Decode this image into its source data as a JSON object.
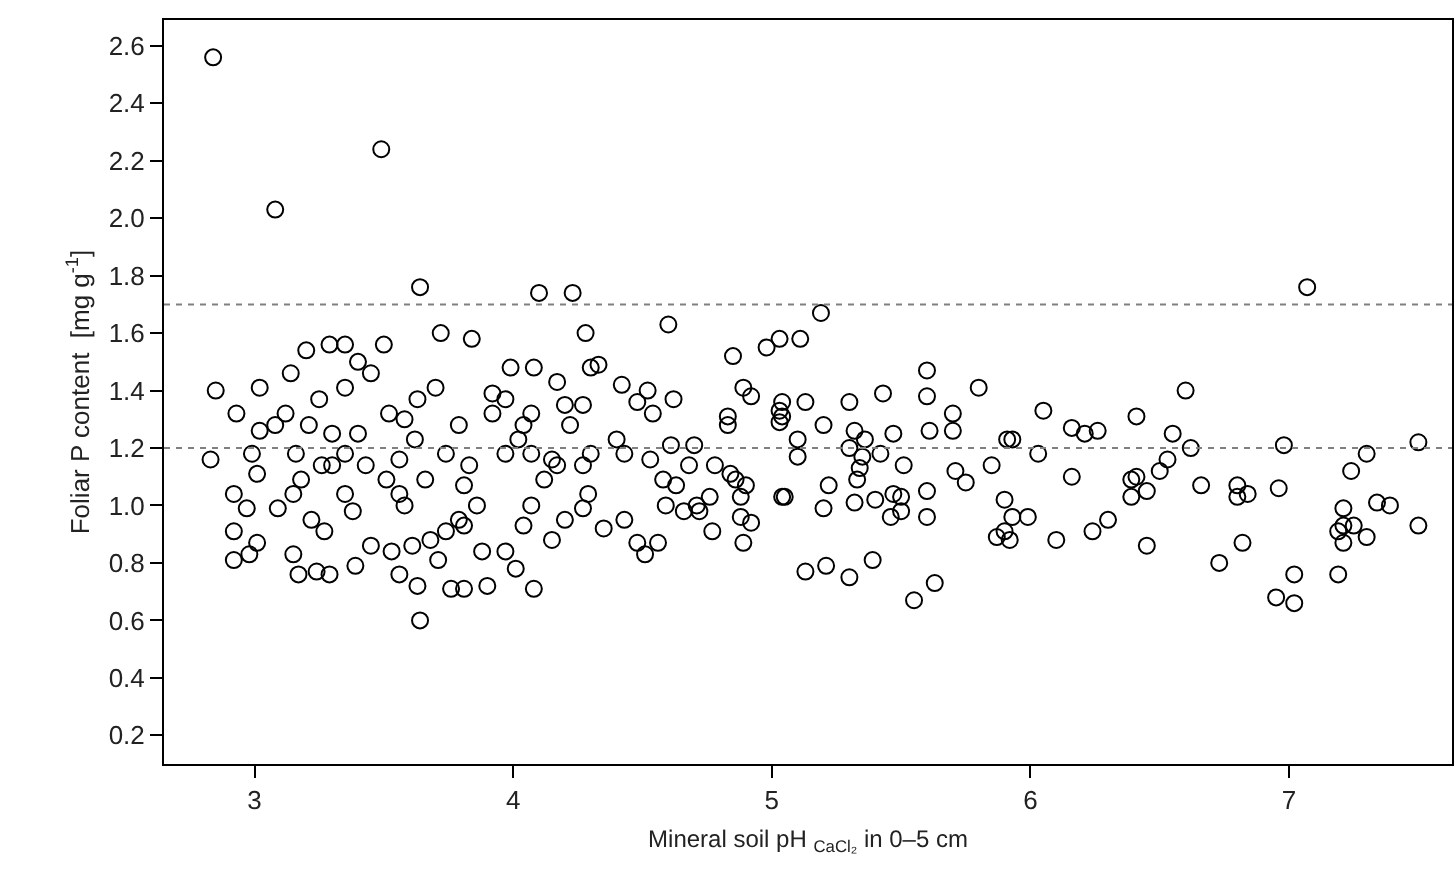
{
  "chart_data": {
    "type": "scatter",
    "xlabel": "Mineral soil pH $_{CaCl₂}$ in 0–5 cm",
    "ylabel": "Foliar P content  [mg g$^{-1}$]",
    "xlim": [
      2.65,
      7.63
    ],
    "ylim": [
      0.1,
      2.69
    ],
    "xticks": [
      3,
      4,
      5,
      6,
      7
    ],
    "yticks": [
      0.2,
      0.4,
      0.6,
      0.8,
      {
        "value": 1,
        "label": "1.0"
      },
      1.2,
      1.4,
      1.6,
      1.8,
      {
        "value": 2,
        "label": "2.0"
      },
      2.2,
      2.4,
      2.6
    ],
    "marker": "circle",
    "ref_lines": [
      {
        "axis": "y",
        "value": 1.2,
        "color": "#808080",
        "line_style": "dotted"
      },
      {
        "axis": "y",
        "value": 1.7,
        "color": "#808080",
        "line_style": "dotted"
      }
    ],
    "series": [
      {
        "color": "#000000",
        "x": [
          2.84,
          3.49,
          3.08,
          2.85,
          2.83,
          3.64,
          4.1,
          4.23,
          4.6,
          4.28,
          3.72,
          3.84,
          3.29,
          3.35,
          3.5,
          3.2,
          3.14,
          3.02,
          2.93,
          2.92,
          2.92,
          2.92,
          2.98,
          3.01,
          2.97,
          3.01,
          2.99,
          3.02,
          3.08,
          3.09,
          3.15,
          3.17,
          3.24,
          3.29,
          3.39,
          3.56,
          3.63,
          3.64,
          3.76,
          3.81,
          3.9,
          4.01,
          4.08,
          3.71,
          3.16,
          3.21,
          3.25,
          3.3,
          3.35,
          3.4,
          3.45,
          3.52,
          3.56,
          3.58,
          3.62,
          3.66,
          3.7,
          3.74,
          3.79,
          3.83,
          3.86,
          3.92,
          3.97,
          4.02,
          3.97,
          3.92,
          3.35,
          3.4,
          3.22,
          3.27,
          3.38,
          3.45,
          3.53,
          3.61,
          3.68,
          3.81,
          3.88,
          3.97,
          3.79,
          3.26,
          3.18,
          3.12,
          3.15,
          3.43,
          3.51,
          3.58,
          3.63,
          3.74,
          3.81,
          3.56,
          3.3,
          3.35,
          4.04,
          4.07,
          4.08,
          3.99,
          4.17,
          4.2,
          4.3,
          4.33,
          4.42,
          4.52,
          4.54,
          4.48,
          4.62,
          4.85,
          4.89,
          4.92,
          4.83,
          4.83,
          4.07,
          4.15,
          4.17,
          4.27,
          4.3,
          4.4,
          4.43,
          4.53,
          4.61,
          4.7,
          4.68,
          4.63,
          4.78,
          4.84,
          4.86,
          4.76,
          4.72,
          4.66,
          4.88,
          4.9,
          4.88,
          4.92,
          4.89,
          4.77,
          4.56,
          4.51,
          4.48,
          4.43,
          4.35,
          4.27,
          4.29,
          4.2,
          4.15,
          4.04,
          4.07,
          4.12,
          4.22,
          4.27,
          4.59,
          4.58,
          4.71,
          5.04,
          5.04,
          5.04,
          7.07,
          5.19,
          4.98,
          5.03,
          5.11,
          5.6,
          5.6,
          5.43,
          5.3,
          5.13,
          5.8,
          6.05,
          5.7,
          5.03,
          5.03,
          5.2,
          6.6,
          6.41,
          6.16,
          6.21,
          6.26,
          5.32,
          5.47,
          5.61,
          5.7,
          5.1,
          5.1,
          5.3,
          5.36,
          5.35,
          5.42,
          5.91,
          5.93,
          6.03,
          6.55,
          6.62,
          6.53,
          6.5,
          6.98,
          7.5,
          7.3,
          7.24,
          5.85,
          5.51,
          5.34,
          5.33,
          5.71,
          5.75,
          6.16,
          6.39,
          6.41,
          6.66,
          6.8,
          6.8,
          6.84,
          6.96,
          6.45,
          6.39,
          5.05,
          5.22,
          5.32,
          5.4,
          5.47,
          5.5,
          5.46,
          5.5,
          5.6,
          5.6,
          5.2,
          5.9,
          5.93,
          5.99,
          5.87,
          5.9,
          5.92,
          6.1,
          6.24,
          6.3,
          6.45,
          6.73,
          6.82,
          7.21,
          7.34,
          7.39,
          7.19,
          7.21,
          7.25,
          7.21,
          7.3,
          7.5,
          7.19,
          6.95,
          7.02,
          7.02,
          5.13,
          5.21,
          5.3,
          5.39,
          5.55,
          5.63
        ],
        "values": [
          2.56,
          2.24,
          2.03,
          1.4,
          1.16,
          1.76,
          1.74,
          1.74,
          1.63,
          1.6,
          1.6,
          1.58,
          1.56,
          1.56,
          1.56,
          1.54,
          1.46,
          1.41,
          1.32,
          1.04,
          0.91,
          0.81,
          0.83,
          0.87,
          0.99,
          1.11,
          1.18,
          1.26,
          1.28,
          0.99,
          0.83,
          0.76,
          0.77,
          0.76,
          0.79,
          0.76,
          0.72,
          0.6,
          0.71,
          0.71,
          0.72,
          0.78,
          0.71,
          0.81,
          1.18,
          1.28,
          1.37,
          1.14,
          1.04,
          1.25,
          1.46,
          1.32,
          1.16,
          1.0,
          1.23,
          1.09,
          1.41,
          0.91,
          1.28,
          1.14,
          1.0,
          1.32,
          1.18,
          1.23,
          1.37,
          1.39,
          1.41,
          1.5,
          0.95,
          0.91,
          0.98,
          0.86,
          0.84,
          0.86,
          0.88,
          0.93,
          0.84,
          0.84,
          0.95,
          1.14,
          1.09,
          1.32,
          1.04,
          1.14,
          1.09,
          1.3,
          1.37,
          1.18,
          1.07,
          1.04,
          1.25,
          1.18,
          1.28,
          1.32,
          1.48,
          1.48,
          1.43,
          1.35,
          1.48,
          1.49,
          1.42,
          1.4,
          1.32,
          1.36,
          1.37,
          1.52,
          1.41,
          1.38,
          1.31,
          1.28,
          1.18,
          1.16,
          1.14,
          1.14,
          1.18,
          1.23,
          1.18,
          1.16,
          1.21,
          1.21,
          1.14,
          1.07,
          1.14,
          1.11,
          1.09,
          1.03,
          0.98,
          0.98,
          1.03,
          1.07,
          0.96,
          0.94,
          0.87,
          0.91,
          0.87,
          0.83,
          0.87,
          0.95,
          0.92,
          0.99,
          1.04,
          0.95,
          0.88,
          0.93,
          1.0,
          1.09,
          1.28,
          1.35,
          1.0,
          1.09,
          1.0,
          1.03,
          1.31,
          1.36,
          1.76,
          1.67,
          1.55,
          1.58,
          1.58,
          1.47,
          1.38,
          1.39,
          1.36,
          1.36,
          1.41,
          1.33,
          1.32,
          1.33,
          1.29,
          1.28,
          1.4,
          1.31,
          1.27,
          1.25,
          1.26,
          1.26,
          1.25,
          1.26,
          1.26,
          1.23,
          1.17,
          1.2,
          1.23,
          1.17,
          1.18,
          1.23,
          1.23,
          1.18,
          1.25,
          1.2,
          1.16,
          1.12,
          1.21,
          1.22,
          1.18,
          1.12,
          1.14,
          1.14,
          1.13,
          1.09,
          1.12,
          1.08,
          1.1,
          1.09,
          1.1,
          1.07,
          1.07,
          1.03,
          1.04,
          1.06,
          1.05,
          1.03,
          1.03,
          1.07,
          1.01,
          1.02,
          1.04,
          1.03,
          0.96,
          0.98,
          1.05,
          0.96,
          0.99,
          1.02,
          0.96,
          0.96,
          0.89,
          0.91,
          0.88,
          0.88,
          0.91,
          0.95,
          0.86,
          0.8,
          0.87,
          0.99,
          1.01,
          1.0,
          0.91,
          0.93,
          0.93,
          0.87,
          0.89,
          0.93,
          0.76,
          0.68,
          0.76,
          0.66,
          0.77,
          0.79,
          0.75,
          0.81,
          0.67,
          0.73
        ]
      }
    ]
  }
}
